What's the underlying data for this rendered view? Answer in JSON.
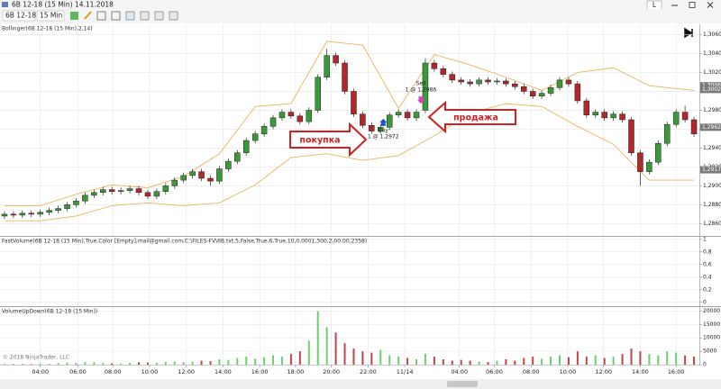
{
  "window": {
    "title": "6B 12-18 (15 Min)  14.11.2018",
    "instrument": "6B 12-18",
    "interval": "15 Min",
    "button": "L",
    "copyright": "© 2018 NinjaTrader, LLC"
  },
  "callouts": {
    "buy": "покупка",
    "sell": "продажа"
  },
  "chart_data": [
    {
      "type": "candlestick",
      "title": "Bollinger(6B 12-18 (15 Min),2,14)",
      "up_color": "#3a9a3a",
      "down_color": "#b3262a",
      "grid": true,
      "xlim": [
        -0.5,
        77.6
      ],
      "ylim": [
        1.2847,
        1.3071
      ],
      "yticks": [
        {
          "value": 1.286,
          "label": "1,2860"
        },
        {
          "value": 1.288,
          "label": "1,2880"
        },
        {
          "value": 1.29,
          "label": "1,2900"
        },
        {
          "value": 1.292,
          "label": "1,2920"
        },
        {
          "value": 1.294,
          "label": "1,2940"
        },
        {
          "value": 1.296,
          "label": "1,2960"
        },
        {
          "value": 1.298,
          "label": "1,2980"
        },
        {
          "value": 1.3,
          "label": "1,3000"
        },
        {
          "value": 1.302,
          "label": "1,3020"
        },
        {
          "value": 1.304,
          "label": "1,3040"
        },
        {
          "value": 1.306,
          "label": "1,3060"
        }
      ],
      "open": [
        1.2868,
        1.287,
        1.2869,
        1.2871,
        1.287,
        1.2872,
        1.2874,
        1.2876,
        1.288,
        1.2884,
        1.289,
        1.2893,
        1.2896,
        1.2894,
        1.2895,
        1.2897,
        1.2893,
        1.2889,
        1.2894,
        1.29,
        1.2906,
        1.2911,
        1.2915,
        1.2908,
        1.2905,
        1.2918,
        1.2926,
        1.2935,
        1.2948,
        1.2955,
        1.2963,
        1.2972,
        1.2978,
        1.2974,
        1.2968,
        1.298,
        1.3015,
        1.3038,
        1.303,
        1.3,
        1.2976,
        1.2964,
        1.2958,
        1.2962,
        1.2975,
        1.2978,
        1.2972,
        1.298,
        1.303,
        1.3024,
        1.3018,
        1.3012,
        1.301,
        1.3008,
        1.3012,
        1.301,
        1.3011,
        1.3008,
        1.3005,
        1.3,
        1.2995,
        1.2998,
        1.3004,
        1.3012,
        1.3008,
        1.299,
        1.2975,
        1.2978,
        1.2972,
        1.2976,
        1.297,
        1.2935,
        1.2915,
        1.2925,
        1.2945,
        1.2965,
        1.2978,
        1.297
      ],
      "high": [
        1.2873,
        1.2873,
        1.2874,
        1.2874,
        1.2875,
        1.2877,
        1.2879,
        1.2883,
        1.2887,
        1.2893,
        1.2896,
        1.2899,
        1.2899,
        1.2898,
        1.29,
        1.29,
        1.2896,
        1.2897,
        1.2903,
        1.2909,
        1.2914,
        1.2918,
        1.2918,
        1.2911,
        1.2921,
        1.2929,
        1.2938,
        1.2951,
        1.2958,
        1.2966,
        1.2975,
        1.2981,
        1.2981,
        1.2977,
        1.2983,
        1.3018,
        1.3045,
        1.3041,
        1.3033,
        1.3003,
        1.2979,
        1.2967,
        1.2965,
        1.2978,
        1.2981,
        1.2981,
        1.2981,
        1.3035,
        1.3033,
        1.3027,
        1.3021,
        1.3015,
        1.3013,
        1.3015,
        1.3015,
        1.3014,
        1.3014,
        1.3011,
        1.3008,
        1.3003,
        1.3001,
        1.3007,
        1.3015,
        1.3015,
        1.3011,
        1.2993,
        1.2981,
        1.2981,
        1.2979,
        1.2979,
        1.2973,
        1.2938,
        1.2928,
        1.2948,
        1.2968,
        1.2981,
        1.2985,
        1.2973
      ],
      "low": [
        1.2865,
        1.2866,
        1.2866,
        1.2867,
        1.2867,
        1.2869,
        1.2871,
        1.2873,
        1.2877,
        1.2881,
        1.2887,
        1.289,
        1.2891,
        1.2891,
        1.2892,
        1.289,
        1.2886,
        1.2886,
        1.2891,
        1.2897,
        1.2903,
        1.2908,
        1.2905,
        1.29,
        1.2902,
        1.2915,
        1.2923,
        1.2932,
        1.2945,
        1.2952,
        1.296,
        1.2969,
        1.2971,
        1.2965,
        1.2965,
        1.2977,
        1.3012,
        1.3027,
        1.2997,
        1.2973,
        1.2961,
        1.2955,
        1.2955,
        1.2959,
        1.2972,
        1.2969,
        1.2969,
        1.2977,
        1.3021,
        1.3015,
        1.3009,
        1.3007,
        1.3005,
        1.3005,
        1.3007,
        1.3007,
        1.3005,
        1.3002,
        1.2997,
        1.2992,
        1.2992,
        1.2995,
        1.3001,
        1.3005,
        1.2987,
        1.2972,
        1.2972,
        1.2969,
        1.2969,
        1.2967,
        1.2932,
        1.29,
        1.2912,
        1.2922,
        1.2942,
        1.2962,
        1.2967,
        1.2952
      ],
      "close": [
        1.287,
        1.2869,
        1.2871,
        1.287,
        1.2872,
        1.2874,
        1.2876,
        1.288,
        1.2884,
        1.289,
        1.2893,
        1.2896,
        1.2894,
        1.2895,
        1.2897,
        1.2893,
        1.2889,
        1.2894,
        1.29,
        1.2906,
        1.2911,
        1.2915,
        1.2908,
        1.2905,
        1.2918,
        1.2926,
        1.2935,
        1.2948,
        1.2955,
        1.2963,
        1.2972,
        1.2978,
        1.2974,
        1.2968,
        1.298,
        1.3015,
        1.3038,
        1.303,
        1.3,
        1.2976,
        1.2964,
        1.2958,
        1.2962,
        1.2975,
        1.2978,
        1.2972,
        1.2978,
        1.303,
        1.3024,
        1.3018,
        1.3012,
        1.301,
        1.3008,
        1.3012,
        1.301,
        1.3011,
        1.3008,
        1.3005,
        1.3,
        1.2995,
        1.2998,
        1.3004,
        1.3012,
        1.3008,
        1.299,
        1.2975,
        1.2978,
        1.2972,
        1.2976,
        1.297,
        1.2935,
        1.2915,
        1.2925,
        1.2945,
        1.2965,
        1.2978,
        1.297,
        1.2955
      ],
      "bands": {
        "color": "#eab55a",
        "index": [
          0,
          4,
          8,
          12,
          16,
          20,
          24,
          28,
          32,
          36,
          40,
          44,
          48,
          52,
          56,
          60,
          64,
          68,
          72,
          77
        ],
        "upper": [
          1.2879,
          1.2879,
          1.2891,
          1.2901,
          1.2898,
          1.291,
          1.2934,
          1.2984,
          1.2987,
          1.3053,
          1.3049,
          1.2982,
          1.3039,
          1.3028,
          1.3015,
          1.3001,
          1.302,
          1.3025,
          1.3006,
          1.3001
        ],
        "lower": [
          1.2863,
          1.2863,
          1.2868,
          1.2879,
          1.2882,
          1.2879,
          1.2882,
          1.2901,
          1.293,
          1.2934,
          1.2927,
          1.2932,
          1.2953,
          1.2977,
          1.2987,
          1.2984,
          1.2963,
          1.2944,
          1.2906,
          1.2906
        ]
      },
      "markers": [
        {
          "text": "Sell",
          "detail": "1 @ 1,2986",
          "x": 46.5,
          "price": 1.2986,
          "color": "#e040c8",
          "direction": "down"
        },
        {
          "text": "Buy",
          "detail": "1 @ 1,2972",
          "x": 42.3,
          "price": 1.2972,
          "color": "#2050d0",
          "direction": "up"
        }
      ],
      "price_markers": [
        {
          "value": 1.3006,
          "label": "1,3006"
        },
        {
          "value": 1.3002,
          "label": "1,3002"
        },
        {
          "value": 1.2962,
          "label": "1,2962"
        },
        {
          "value": 1.2917,
          "label": "1,2917"
        }
      ]
    },
    {
      "type": "indicator",
      "title": "FastVolume(6B 12-18 (15 Min),True,Color [Empty],mail@gmail.com,C:\\FILES-FV\\6B.txt,5,False,True,6,True,10,0,0001,300,2,00:00,2358)",
      "ylim": [
        -0.06,
        1.04
      ],
      "grid": true,
      "yticks": [
        0,
        {
          "value": 0.2,
          "label": "0,2"
        },
        {
          "value": 0.4,
          "label": "0,4"
        },
        {
          "value": 0.6,
          "label": "0,6"
        },
        {
          "value": 0.8,
          "label": "0,8"
        },
        1
      ]
    },
    {
      "type": "volume",
      "title": "VolumeUpDown(6B 12-18 (15 Min))",
      "up_color": "#6cd06c",
      "down_color": "#c0464a",
      "grid": true,
      "xlim": [
        -0.5,
        77.6
      ],
      "ylim": [
        0,
        21500
      ],
      "yticks": [
        0,
        5000,
        10000,
        15000,
        20000
      ],
      "values": [
        300,
        200,
        300,
        200,
        400,
        300,
        600,
        800,
        700,
        1000,
        900,
        600,
        500,
        400,
        700,
        900,
        800,
        700,
        1000,
        1200,
        900,
        1100,
        1500,
        1300,
        2000,
        1800,
        2500,
        3000,
        2200,
        2800,
        3500,
        3000,
        4000,
        5000,
        9000,
        20000,
        14000,
        12000,
        8000,
        6000,
        5000,
        4500,
        5500,
        3500,
        3000,
        2500,
        2000,
        4000,
        3000,
        2000,
        1500,
        1800,
        1500,
        1200,
        1000,
        1500,
        2000,
        1500,
        2500,
        3000,
        2200,
        3000,
        3500,
        2800,
        5000,
        3000,
        3500,
        2500,
        3000,
        4000,
        6000,
        5000,
        4000,
        3500,
        5000,
        4500,
        3500,
        3000
      ],
      "xticks": [
        {
          "value": 4.0,
          "label": "04:00"
        },
        {
          "value": 8.2,
          "label": "06:00"
        },
        {
          "value": 12.1,
          "label": "08:00"
        },
        {
          "value": 16.2,
          "label": "10:00"
        },
        {
          "value": 20.3,
          "label": "12:00"
        },
        {
          "value": 24.4,
          "label": "14:00"
        },
        {
          "value": 28.5,
          "label": "16:00"
        },
        {
          "value": 32.5,
          "label": "18:00"
        },
        {
          "value": 36.5,
          "label": "20:00"
        },
        {
          "value": 40.6,
          "label": "22:00"
        },
        {
          "value": 44.7,
          "label": "11/14"
        },
        {
          "value": 50.8,
          "label": "04:00"
        },
        {
          "value": 54.7,
          "label": "06:00"
        },
        {
          "value": 58.8,
          "label": "08:00"
        },
        {
          "value": 62.9,
          "label": "10:00"
        },
        {
          "value": 66.9,
          "label": "12:00"
        },
        {
          "value": 71.0,
          "label": "14:00"
        },
        {
          "value": 75.0,
          "label": "16:00"
        }
      ]
    }
  ]
}
